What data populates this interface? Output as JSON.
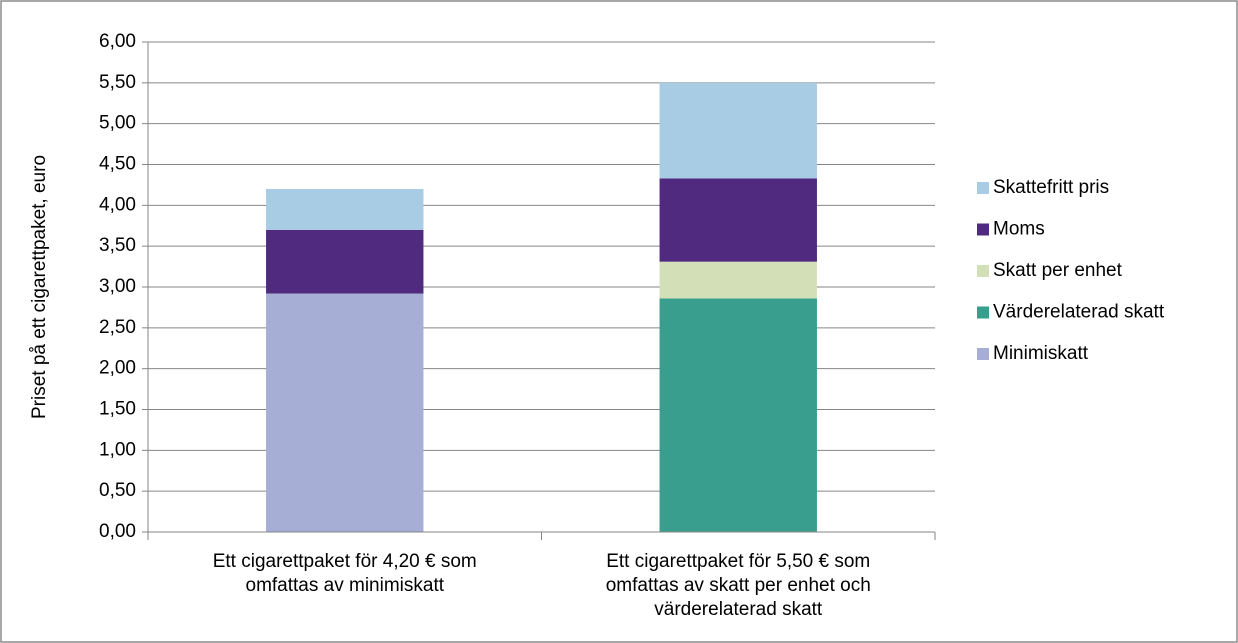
{
  "chart_data": {
    "type": "stacked_bar",
    "ylabel": "Priset på ett cigarettpaket, euro",
    "categories": [
      [
        "Ett cigarettpaket för 4,20 € som",
        "omfattas av minimiskatt"
      ],
      [
        "Ett cigarettpaket för 5,50 € som",
        "omfattas av skatt per enhet och",
        "värderelaterad skatt"
      ]
    ],
    "series": [
      {
        "name": "Minimiskatt",
        "color": "#a6aed6",
        "values": [
          2.92,
          0
        ]
      },
      {
        "name": "Värderelaterad skatt",
        "color": "#3a9e8e",
        "values": [
          0,
          2.86
        ]
      },
      {
        "name": "Skatt per enhet",
        "color": "#d3e0b7",
        "values": [
          0,
          0.45
        ]
      },
      {
        "name": "Moms",
        "color": "#4f2a7f",
        "values": [
          0.78,
          1.02
        ]
      },
      {
        "name": "Skattefritt pris",
        "color": "#a9cce5",
        "values": [
          0.5,
          1.17
        ]
      }
    ],
    "ylim": [
      0,
      6
    ],
    "yticks": [
      {
        "value": 0,
        "label": "0,00"
      },
      {
        "value": 0.5,
        "label": "0,50"
      },
      {
        "value": 1,
        "label": "1,00"
      },
      {
        "value": 1.5,
        "label": "1,50"
      },
      {
        "value": 2,
        "label": "2,00"
      },
      {
        "value": 2.5,
        "label": "2,50"
      },
      {
        "value": 3,
        "label": "3,00"
      },
      {
        "value": 3.5,
        "label": "3,50"
      },
      {
        "value": 4,
        "label": "4,00"
      },
      {
        "value": 4.5,
        "label": "4,50"
      },
      {
        "value": 5,
        "label": "5,00"
      },
      {
        "value": 5.5,
        "label": "5,50"
      },
      {
        "value": 6,
        "label": "6,00"
      }
    ],
    "grid": true,
    "legend": "right"
  }
}
